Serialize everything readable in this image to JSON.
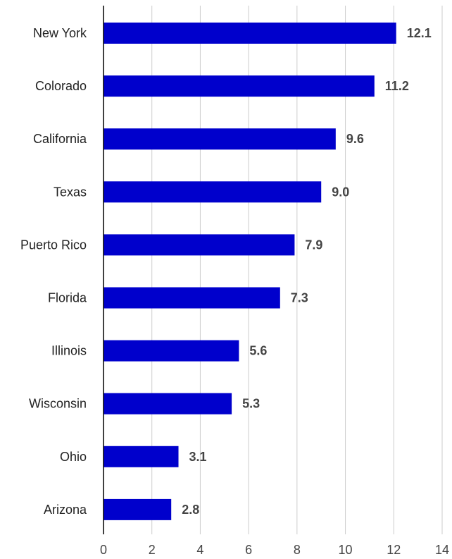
{
  "chart_data": {
    "type": "bar",
    "orientation": "horizontal",
    "categories": [
      "New York",
      "Colorado",
      "California",
      "Texas",
      "Puerto Rico",
      "Florida",
      "Illinois",
      "Wisconsin",
      "Ohio",
      "Arizona"
    ],
    "values": [
      12.1,
      11.2,
      9.6,
      9.0,
      7.9,
      7.3,
      5.6,
      5.3,
      3.1,
      2.8
    ],
    "value_labels": [
      "12.1",
      "11.2",
      "9.6",
      "9.0",
      "7.9",
      "7.3",
      "5.6",
      "5.3",
      "3.1",
      "2.8"
    ],
    "xlim": [
      0,
      14
    ],
    "x_ticks": [
      "0",
      "2",
      "4",
      "6",
      "8",
      "10",
      "12",
      "14"
    ],
    "grid": "vertical",
    "legend": "none",
    "bar_color": "#0000CC",
    "grid_color": "#CCCCCC",
    "axis_color": "#000000"
  }
}
